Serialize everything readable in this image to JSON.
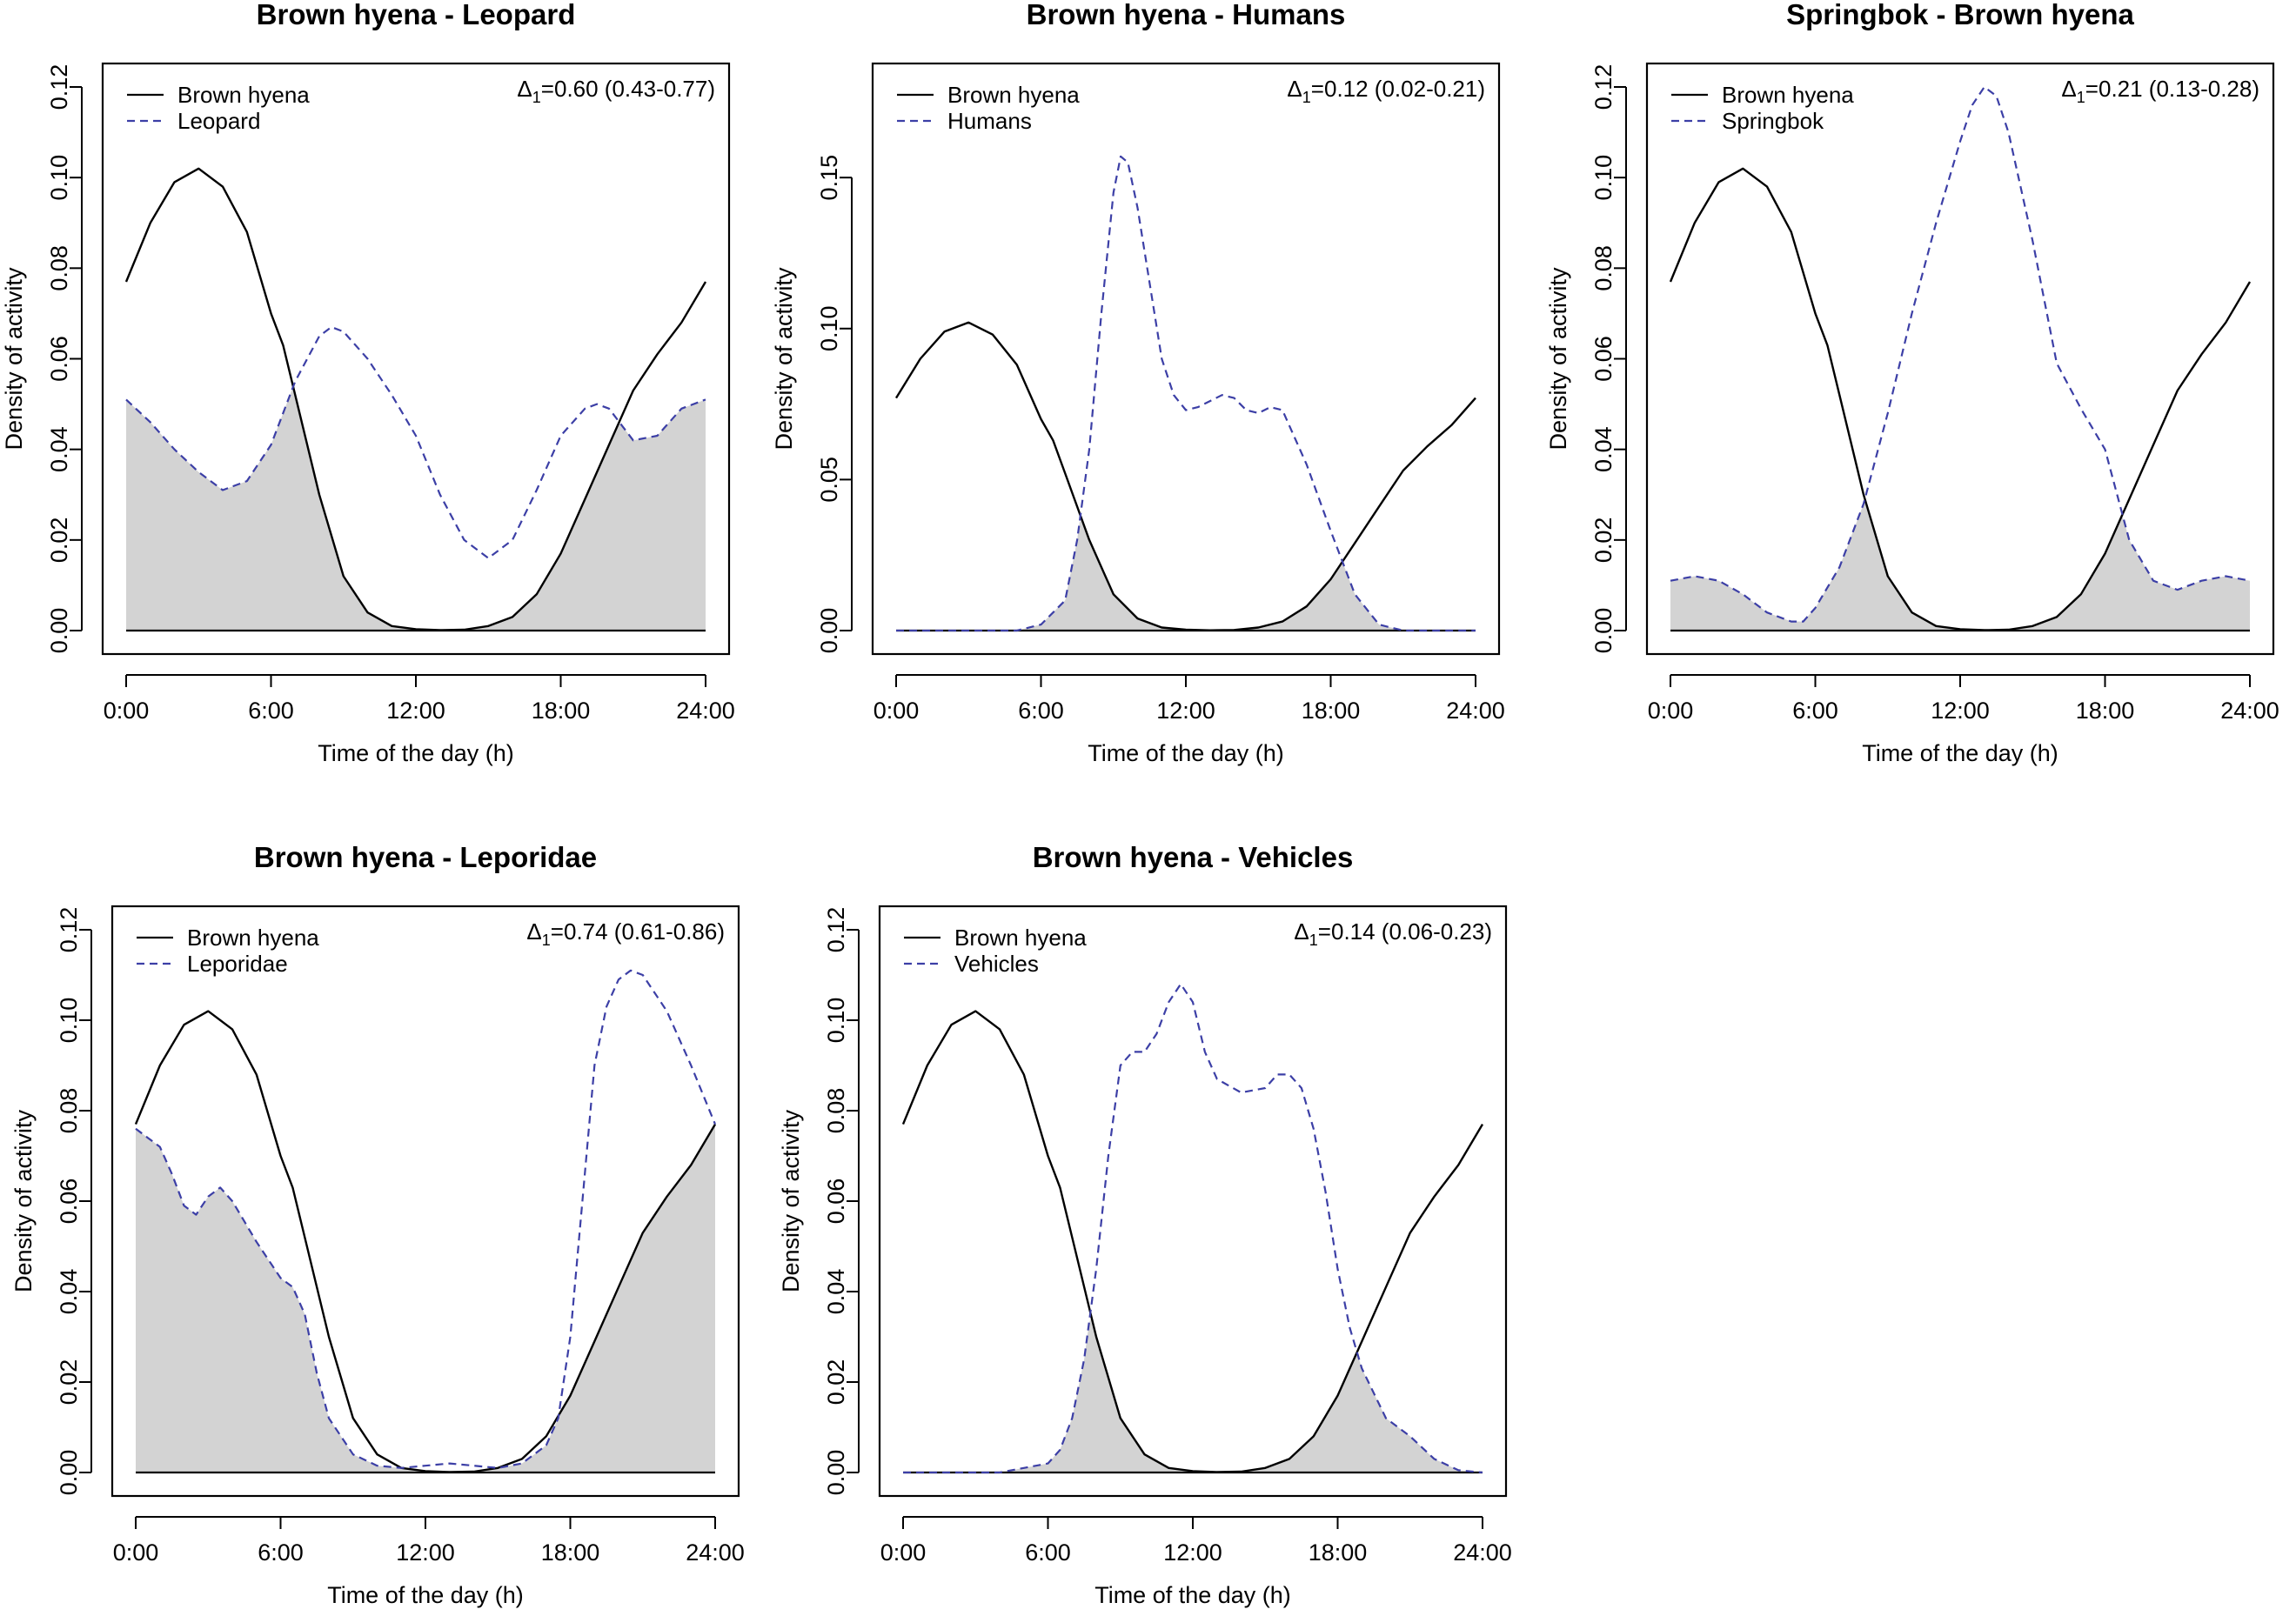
{
  "figure": {
    "background": "#ffffff",
    "overlap_fill": "#d3d3d3",
    "solid_color": "#000000",
    "dashed_color": "#3c3fa6"
  },
  "chart_data": [
    {
      "type": "line",
      "title": "Brown hyena - Leopard",
      "xlabel": "Time of the day (h)",
      "ylabel": "Density of activity",
      "xlim": [
        0,
        24
      ],
      "ylim": [
        0,
        0.12
      ],
      "xticks": [
        0,
        6,
        12,
        18,
        24
      ],
      "xtick_labels": [
        "0:00",
        "6:00",
        "12:00",
        "18:00",
        "24:00"
      ],
      "yticks": [
        0,
        0.02,
        0.04,
        0.06,
        0.08,
        0.1,
        0.12
      ],
      "ytick_labels": [
        "0.00",
        "0.02",
        "0.04",
        "0.06",
        "0.08",
        "0.10",
        "0.12"
      ],
      "legend_position": "top-left",
      "annotation": {
        "symbol": "Δ",
        "subscript": "1",
        "text": "=0.60 (0.43-0.77)"
      },
      "overlap_shaded": true,
      "series": [
        {
          "name": "Brown hyena",
          "style": "solid",
          "x": [
            0,
            1,
            2,
            3,
            4,
            5,
            6,
            6.5,
            7,
            8,
            9,
            10,
            11,
            12,
            13,
            14,
            15,
            16,
            17,
            18,
            19,
            20,
            21,
            22,
            23,
            24
          ],
          "y": [
            0.077,
            0.09,
            0.099,
            0.102,
            0.098,
            0.088,
            0.07,
            0.063,
            0.052,
            0.03,
            0.012,
            0.004,
            0.001,
            0.0003,
            0.0001,
            0.0002,
            0.001,
            0.003,
            0.008,
            0.017,
            0.029,
            0.041,
            0.053,
            0.061,
            0.068,
            0.077
          ]
        },
        {
          "name": "Leopard",
          "style": "dashed",
          "x": [
            0,
            1,
            2,
            3,
            4,
            5,
            6,
            7,
            8,
            8.5,
            9,
            10,
            11,
            12,
            13,
            14,
            15,
            16,
            17,
            18,
            19,
            19.5,
            20,
            21,
            22,
            23,
            24
          ],
          "y": [
            0.051,
            0.046,
            0.04,
            0.035,
            0.031,
            0.033,
            0.041,
            0.055,
            0.065,
            0.067,
            0.066,
            0.06,
            0.052,
            0.043,
            0.03,
            0.02,
            0.016,
            0.02,
            0.031,
            0.043,
            0.049,
            0.05,
            0.049,
            0.042,
            0.043,
            0.049,
            0.051
          ]
        }
      ]
    },
    {
      "type": "line",
      "title": "Brown hyena - Humans",
      "xlabel": "Time of the day (h)",
      "ylabel": "Density of activity",
      "xlim": [
        0,
        24
      ],
      "ylim": [
        0,
        0.18
      ],
      "xticks": [
        0,
        6,
        12,
        18,
        24
      ],
      "xtick_labels": [
        "0:00",
        "6:00",
        "12:00",
        "18:00",
        "24:00"
      ],
      "yticks": [
        0,
        0.05,
        0.1,
        0.15
      ],
      "ytick_labels": [
        "0.00",
        "0.05",
        "0.10",
        "0.15"
      ],
      "legend_position": "top-left",
      "annotation": {
        "symbol": "Δ",
        "subscript": "1",
        "text": "=0.12 (0.02-0.21)"
      },
      "overlap_shaded": true,
      "series": [
        {
          "name": "Brown hyena",
          "style": "solid",
          "x": [
            0,
            1,
            2,
            3,
            4,
            5,
            6,
            6.5,
            7,
            8,
            9,
            10,
            11,
            12,
            13,
            14,
            15,
            16,
            17,
            18,
            19,
            20,
            21,
            22,
            23,
            24
          ],
          "y": [
            0.077,
            0.09,
            0.099,
            0.102,
            0.098,
            0.088,
            0.07,
            0.063,
            0.052,
            0.03,
            0.012,
            0.004,
            0.001,
            0.0003,
            0.0001,
            0.0002,
            0.001,
            0.003,
            0.008,
            0.017,
            0.029,
            0.041,
            0.053,
            0.061,
            0.068,
            0.077
          ]
        },
        {
          "name": "Humans",
          "style": "dashed",
          "x": [
            0,
            5,
            6,
            7,
            7.5,
            8,
            8.5,
            9,
            9.3,
            9.6,
            10,
            10.5,
            11,
            11.5,
            12,
            12.5,
            13,
            13.5,
            14,
            14.5,
            15,
            15.5,
            16,
            17,
            18,
            19,
            20,
            21,
            24
          ],
          "y": [
            0,
            0,
            0.002,
            0.01,
            0.03,
            0.06,
            0.105,
            0.145,
            0.157,
            0.155,
            0.14,
            0.115,
            0.09,
            0.078,
            0.073,
            0.074,
            0.076,
            0.078,
            0.077,
            0.073,
            0.072,
            0.074,
            0.073,
            0.055,
            0.033,
            0.012,
            0.002,
            0,
            0
          ]
        }
      ]
    },
    {
      "type": "line",
      "title": "Springbok - Brown hyena",
      "xlabel": "Time of the day (h)",
      "ylabel": "Density of activity",
      "xlim": [
        0,
        24
      ],
      "ylim": [
        0,
        0.12
      ],
      "xticks": [
        0,
        6,
        12,
        18,
        24
      ],
      "xtick_labels": [
        "0:00",
        "6:00",
        "12:00",
        "18:00",
        "24:00"
      ],
      "yticks": [
        0,
        0.02,
        0.04,
        0.06,
        0.08,
        0.1,
        0.12
      ],
      "ytick_labels": [
        "0.00",
        "0.02",
        "0.04",
        "0.06",
        "0.08",
        "0.10",
        "0.12"
      ],
      "legend_position": "top-left",
      "annotation": {
        "symbol": "Δ",
        "subscript": "1",
        "text": "=0.21 (0.13-0.28)"
      },
      "overlap_shaded": true,
      "series": [
        {
          "name": "Brown hyena",
          "style": "solid",
          "x": [
            0,
            1,
            2,
            3,
            4,
            5,
            6,
            6.5,
            7,
            8,
            9,
            10,
            11,
            12,
            13,
            14,
            15,
            16,
            17,
            18,
            19,
            20,
            21,
            22,
            23,
            24
          ],
          "y": [
            0.077,
            0.09,
            0.099,
            0.102,
            0.098,
            0.088,
            0.07,
            0.063,
            0.052,
            0.03,
            0.012,
            0.004,
            0.001,
            0.0003,
            0.0001,
            0.0002,
            0.001,
            0.003,
            0.008,
            0.017,
            0.029,
            0.041,
            0.053,
            0.061,
            0.068,
            0.077
          ]
        },
        {
          "name": "Springbok",
          "style": "dashed",
          "x": [
            0,
            1,
            2,
            3,
            4,
            5,
            5.5,
            6,
            7,
            8,
            9,
            10,
            11,
            12,
            12.5,
            13,
            13.5,
            14,
            15,
            16,
            17,
            18,
            19,
            20,
            21,
            22,
            23,
            24
          ],
          "y": [
            0.011,
            0.012,
            0.011,
            0.008,
            0.004,
            0.002,
            0.002,
            0.005,
            0.014,
            0.028,
            0.048,
            0.07,
            0.09,
            0.108,
            0.116,
            0.12,
            0.118,
            0.11,
            0.086,
            0.059,
            0.049,
            0.04,
            0.02,
            0.011,
            0.009,
            0.011,
            0.012,
            0.011
          ]
        }
      ]
    },
    {
      "type": "line",
      "title": "Brown hyena - Leporidae",
      "xlabel": "Time of the day (h)",
      "ylabel": "Density of activity",
      "xlim": [
        0,
        24
      ],
      "ylim": [
        0,
        0.12
      ],
      "xticks": [
        0,
        6,
        12,
        18,
        24
      ],
      "xtick_labels": [
        "0:00",
        "6:00",
        "12:00",
        "18:00",
        "24:00"
      ],
      "yticks": [
        0,
        0.02,
        0.04,
        0.06,
        0.08,
        0.1,
        0.12
      ],
      "ytick_labels": [
        "0.00",
        "0.02",
        "0.04",
        "0.06",
        "0.08",
        "0.10",
        "0.12"
      ],
      "legend_position": "top-left",
      "annotation": {
        "symbol": "Δ",
        "subscript": "1",
        "text": "=0.74 (0.61-0.86)"
      },
      "overlap_shaded": true,
      "series": [
        {
          "name": "Brown hyena",
          "style": "solid",
          "x": [
            0,
            1,
            2,
            3,
            4,
            5,
            6,
            6.5,
            7,
            8,
            9,
            10,
            11,
            12,
            13,
            14,
            15,
            16,
            17,
            18,
            19,
            20,
            21,
            22,
            23,
            24
          ],
          "y": [
            0.077,
            0.09,
            0.099,
            0.102,
            0.098,
            0.088,
            0.07,
            0.063,
            0.052,
            0.03,
            0.012,
            0.004,
            0.001,
            0.0003,
            0.0001,
            0.0002,
            0.001,
            0.003,
            0.008,
            0.017,
            0.029,
            0.041,
            0.053,
            0.061,
            0.068,
            0.077
          ]
        },
        {
          "name": "Leporidae",
          "style": "dashed",
          "x": [
            0,
            0.5,
            1,
            1.5,
            2,
            2.5,
            3,
            3.5,
            4,
            5,
            6,
            6.5,
            7,
            7.5,
            8,
            9,
            10,
            11,
            12,
            13,
            14,
            15,
            16,
            17,
            17.5,
            18,
            18.5,
            19,
            19.5,
            20,
            20.5,
            21,
            22,
            23,
            24
          ],
          "y": [
            0.076,
            0.074,
            0.072,
            0.066,
            0.059,
            0.057,
            0.061,
            0.063,
            0.06,
            0.051,
            0.043,
            0.041,
            0.035,
            0.022,
            0.012,
            0.004,
            0.0015,
            0.001,
            0.0015,
            0.002,
            0.0015,
            0.001,
            0.002,
            0.006,
            0.012,
            0.03,
            0.06,
            0.09,
            0.103,
            0.109,
            0.111,
            0.11,
            0.102,
            0.09,
            0.077
          ]
        }
      ]
    },
    {
      "type": "line",
      "title": "Brown hyena - Vehicles",
      "xlabel": "Time of the day (h)",
      "ylabel": "Density of activity",
      "xlim": [
        0,
        24
      ],
      "ylim": [
        0,
        0.12
      ],
      "xticks": [
        0,
        6,
        12,
        18,
        24
      ],
      "xtick_labels": [
        "0:00",
        "6:00",
        "12:00",
        "18:00",
        "24:00"
      ],
      "yticks": [
        0,
        0.02,
        0.04,
        0.06,
        0.08,
        0.1,
        0.12
      ],
      "ytick_labels": [
        "0.00",
        "0.02",
        "0.04",
        "0.06",
        "0.08",
        "0.10",
        "0.12"
      ],
      "legend_position": "top-left",
      "annotation": {
        "symbol": "Δ",
        "subscript": "1",
        "text": "=0.14 (0.06-0.23)"
      },
      "overlap_shaded": true,
      "series": [
        {
          "name": "Brown hyena",
          "style": "solid",
          "x": [
            0,
            1,
            2,
            3,
            4,
            5,
            6,
            6.5,
            7,
            8,
            9,
            10,
            11,
            12,
            13,
            14,
            15,
            16,
            17,
            18,
            19,
            20,
            21,
            22,
            23,
            24
          ],
          "y": [
            0.077,
            0.09,
            0.099,
            0.102,
            0.098,
            0.088,
            0.07,
            0.063,
            0.052,
            0.03,
            0.012,
            0.004,
            0.001,
            0.0003,
            0.0001,
            0.0002,
            0.001,
            0.003,
            0.008,
            0.017,
            0.029,
            0.041,
            0.053,
            0.061,
            0.068,
            0.077
          ]
        },
        {
          "name": "Vehicles",
          "style": "dashed",
          "x": [
            0,
            4,
            5,
            6,
            6.5,
            7,
            7.5,
            8,
            8.5,
            9,
            9.5,
            10,
            10.5,
            11,
            11.5,
            12,
            12.5,
            13,
            14,
            15,
            15.5,
            16,
            16.5,
            17,
            17.5,
            18,
            18.5,
            19,
            20,
            21,
            22,
            23,
            24
          ],
          "y": [
            0,
            0,
            0.001,
            0.002,
            0.005,
            0.012,
            0.025,
            0.045,
            0.07,
            0.09,
            0.093,
            0.093,
            0.097,
            0.104,
            0.108,
            0.104,
            0.093,
            0.087,
            0.084,
            0.085,
            0.088,
            0.088,
            0.085,
            0.076,
            0.062,
            0.045,
            0.032,
            0.023,
            0.012,
            0.008,
            0.003,
            0.0005,
            0
          ]
        }
      ]
    }
  ]
}
